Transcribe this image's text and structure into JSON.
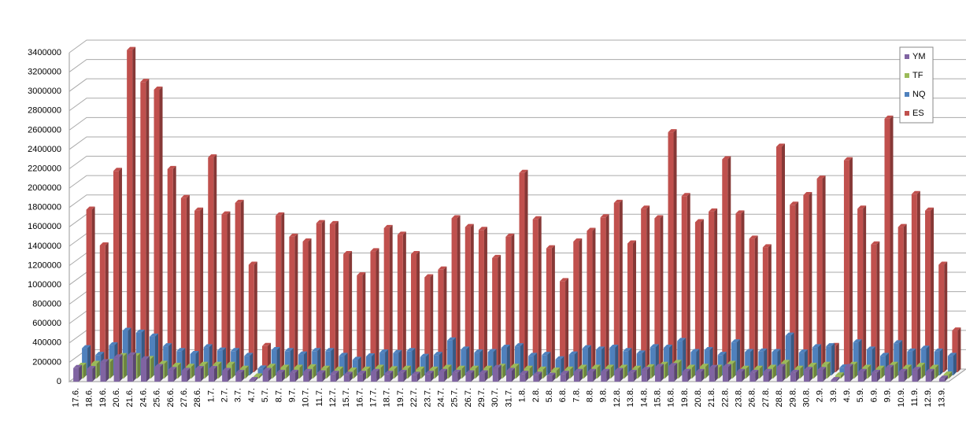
{
  "chart_data": {
    "type": "bar3d",
    "categories": [
      "17.6.",
      "18.6.",
      "19.6.",
      "20.6.",
      "21.6.",
      "24.6.",
      "25.6.",
      "26.6.",
      "27.6.",
      "28.6.",
      "1.7.",
      "2.7.",
      "3.7.",
      "4.7.",
      "5.7.",
      "8.7.",
      "9.7.",
      "10.7.",
      "11.7.",
      "12.7.",
      "15.7.",
      "16.7.",
      "17.7.",
      "18.7.",
      "19.7.",
      "22.7.",
      "23.7.",
      "24.7.",
      "25.7.",
      "26.7.",
      "29.7.",
      "30.7.",
      "31.7.",
      "1.8.",
      "2.8.",
      "5.8.",
      "6.8.",
      "7.8.",
      "8.8.",
      "9.8.",
      "12.8.",
      "13.8.",
      "14.8.",
      "15.8.",
      "16.8.",
      "19.8.",
      "20.8.",
      "21.8.",
      "22.8.",
      "23.8.",
      "26.8.",
      "27.8.",
      "28.8.",
      "29.8.",
      "30.8.",
      "2.9.",
      "3.9.",
      "4.9.",
      "5.9.",
      "6.9.",
      "9.9.",
      "10.9.",
      "11.9.",
      "12.9.",
      "13.9."
    ],
    "series": [
      {
        "name": "YM",
        "color": "#8064a2",
        "values": [
          140000,
          130000,
          200000,
          250000,
          270000,
          230000,
          150000,
          120000,
          110000,
          130000,
          130000,
          110000,
          90000,
          15000,
          110000,
          90000,
          90000,
          100000,
          85000,
          80000,
          70000,
          80000,
          100000,
          80000,
          90000,
          70000,
          80000,
          100000,
          90000,
          85000,
          85000,
          140000,
          110000,
          80000,
          70000,
          60000,
          80000,
          100000,
          100000,
          100000,
          110000,
          90000,
          120000,
          150000,
          160000,
          100000,
          100000,
          140000,
          150000,
          100000,
          90000,
          100000,
          150000,
          90000,
          120000,
          120000,
          15000,
          150000,
          100000,
          90000,
          140000,
          100000,
          120000,
          100000,
          30000
        ]
      },
      {
        "name": "TF",
        "color": "#9bbb59",
        "values": [
          130000,
          150000,
          170000,
          230000,
          230000,
          200000,
          150000,
          130000,
          120000,
          140000,
          140000,
          140000,
          100000,
          20000,
          120000,
          110000,
          110000,
          115000,
          100000,
          90000,
          80000,
          90000,
          110000,
          95000,
          100000,
          90000,
          90000,
          110000,
          100000,
          100000,
          100000,
          120000,
          120000,
          100000,
          90000,
          80000,
          90000,
          110000,
          110000,
          110000,
          110000,
          100000,
          115000,
          140000,
          160000,
          110000,
          120000,
          110000,
          150000,
          100000,
          100000,
          110000,
          160000,
          100000,
          130000,
          140000,
          30000,
          140000,
          110000,
          100000,
          140000,
          110000,
          130000,
          110000,
          40000
        ]
      },
      {
        "name": "NQ",
        "color": "#4f81bd",
        "values": [
          280000,
          210000,
          310000,
          460000,
          440000,
          400000,
          300000,
          250000,
          220000,
          290000,
          255000,
          250000,
          200000,
          70000,
          260000,
          250000,
          215000,
          250000,
          250000,
          200000,
          160000,
          195000,
          235000,
          230000,
          250000,
          190000,
          210000,
          360000,
          265000,
          235000,
          240000,
          285000,
          300000,
          200000,
          210000,
          165000,
          215000,
          280000,
          265000,
          285000,
          250000,
          225000,
          290000,
          285000,
          355000,
          240000,
          260000,
          210000,
          340000,
          240000,
          245000,
          240000,
          410000,
          235000,
          290000,
          300000,
          80000,
          340000,
          265000,
          200000,
          330000,
          245000,
          275000,
          245000,
          200000
        ]
      },
      {
        "name": "ES",
        "color": "#c0504d",
        "values": [
          1680000,
          1310000,
          2080000,
          3330000,
          3000000,
          2920000,
          2100000,
          1800000,
          1670000,
          2220000,
          1630000,
          1750000,
          1110000,
          270000,
          1620000,
          1400000,
          1350000,
          1540000,
          1530000,
          1220000,
          1000000,
          1250000,
          1490000,
          1420000,
          1220000,
          980000,
          1060000,
          1590000,
          1500000,
          1470000,
          1180000,
          1400000,
          2060000,
          1580000,
          1280000,
          940000,
          1350000,
          1460000,
          1600000,
          1750000,
          1330000,
          1690000,
          1590000,
          2480000,
          1820000,
          1550000,
          1660000,
          2200000,
          1640000,
          1380000,
          1290000,
          2330000,
          1730000,
          1830000,
          2000000,
          270000,
          2190000,
          1690000,
          1320000,
          2620000,
          1500000,
          1840000,
          1670000,
          1110000,
          430000
        ]
      }
    ],
    "ylim": [
      0,
      3400000
    ],
    "yticks": [
      0,
      200000,
      400000,
      600000,
      800000,
      1000000,
      1200000,
      1400000,
      1600000,
      1800000,
      2000000,
      2200000,
      2400000,
      2600000,
      2800000,
      3000000,
      3200000,
      3400000
    ],
    "grid": true,
    "legend": "right"
  }
}
